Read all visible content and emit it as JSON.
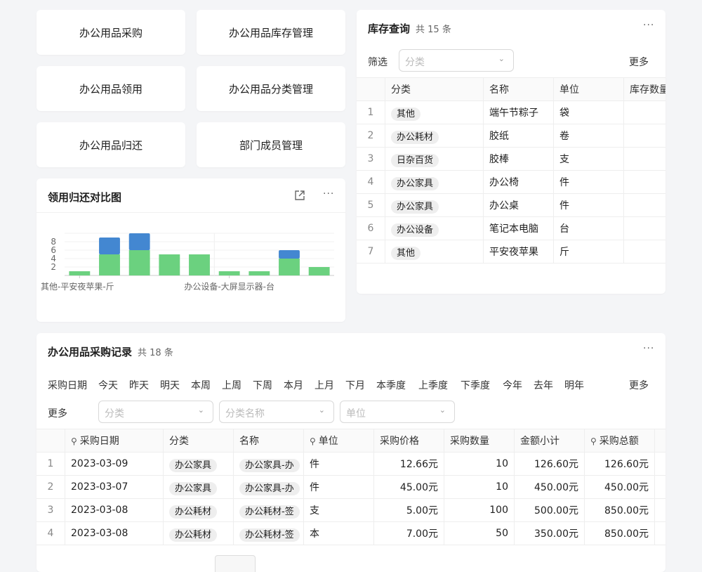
{
  "nav_buttons": [
    "办公用品采购",
    "办公用品库存管理",
    "办公用品领用",
    "办公用品分类管理",
    "办公用品归还",
    "部门成员管理"
  ],
  "chart_card": {
    "title": "领用归还对比图",
    "more": "···",
    "expand_icon": "external-link-icon"
  },
  "chart_data": {
    "type": "bar",
    "stacked": true,
    "categories": [
      "其他-平安夜苹果-斤",
      "",
      "",
      "",
      "",
      "办公设备-大屏显示器-台",
      "",
      "",
      ""
    ],
    "tick_labels": [
      "其他-平安夜苹果-斤",
      "办公设备-大屏显示器-台"
    ],
    "series": [
      {
        "values": [
          1,
          5,
          6,
          5,
          5,
          1,
          1,
          4,
          2
        ],
        "color": "#6bd17f"
      },
      {
        "values": [
          0,
          4,
          4,
          0,
          0,
          0,
          0,
          2,
          0
        ],
        "color": "#4387d1"
      }
    ],
    "yticks": [
      2,
      4,
      6,
      8
    ],
    "ylim": [
      0,
      10
    ],
    "grid": true
  },
  "inventory": {
    "title": "库存查询",
    "count": "共 15 条",
    "more": "···",
    "filter_label": "筛选",
    "filter_placeholder": "分类",
    "more_label": "更多",
    "columns": [
      "",
      "分类",
      "名称",
      "单位",
      "库存数量"
    ],
    "rows": [
      [
        "1",
        "其他",
        "端午节粽子",
        "袋"
      ],
      [
        "2",
        "办公耗材",
        "胶纸",
        "卷"
      ],
      [
        "3",
        "日杂百货",
        "胶棒",
        "支"
      ],
      [
        "4",
        "办公家具",
        "办公椅",
        "件"
      ],
      [
        "5",
        "办公家具",
        "办公桌",
        "件"
      ],
      [
        "6",
        "办公设备",
        "笔记本电脑",
        "台"
      ],
      [
        "7",
        "其他",
        "平安夜苹果",
        "斤"
      ]
    ]
  },
  "purchase": {
    "title": "办公用品采购记录",
    "count": "共 18 条",
    "more": "···",
    "date_label": "采购日期",
    "date_filters": [
      "今天",
      "昨天",
      "明天",
      "本周",
      "上周",
      "下周",
      "本月",
      "上月",
      "下月",
      "本季度",
      "上季度",
      "下季度",
      "今年",
      "去年",
      "明年"
    ],
    "more_label": "更多",
    "more_label2": "更多",
    "filter_placeholders": [
      "分类",
      "分类名称",
      "单位"
    ],
    "columns": [
      "",
      "采购日期",
      "分类",
      "名称",
      "单位",
      "采购价格",
      "采购数量",
      "金额小计",
      "采购总额"
    ],
    "rows": [
      [
        "1",
        "2023-03-09",
        "办公家具",
        "办公家具-办",
        "件",
        "12.66元",
        "10",
        "126.60元",
        "126.60元"
      ],
      [
        "2",
        "2023-03-07",
        "办公家具",
        "办公家具-办",
        "件",
        "45.00元",
        "10",
        "450.00元",
        "450.00元"
      ],
      [
        "3",
        "2023-03-08",
        "办公耗材",
        "办公耗材-签",
        "支",
        "5.00元",
        "100",
        "500.00元",
        "850.00元"
      ],
      [
        "4",
        "2023-03-08",
        "办公耗材",
        "办公耗材-签",
        "本",
        "7.00元",
        "50",
        "350.00元",
        "850.00元"
      ]
    ]
  }
}
